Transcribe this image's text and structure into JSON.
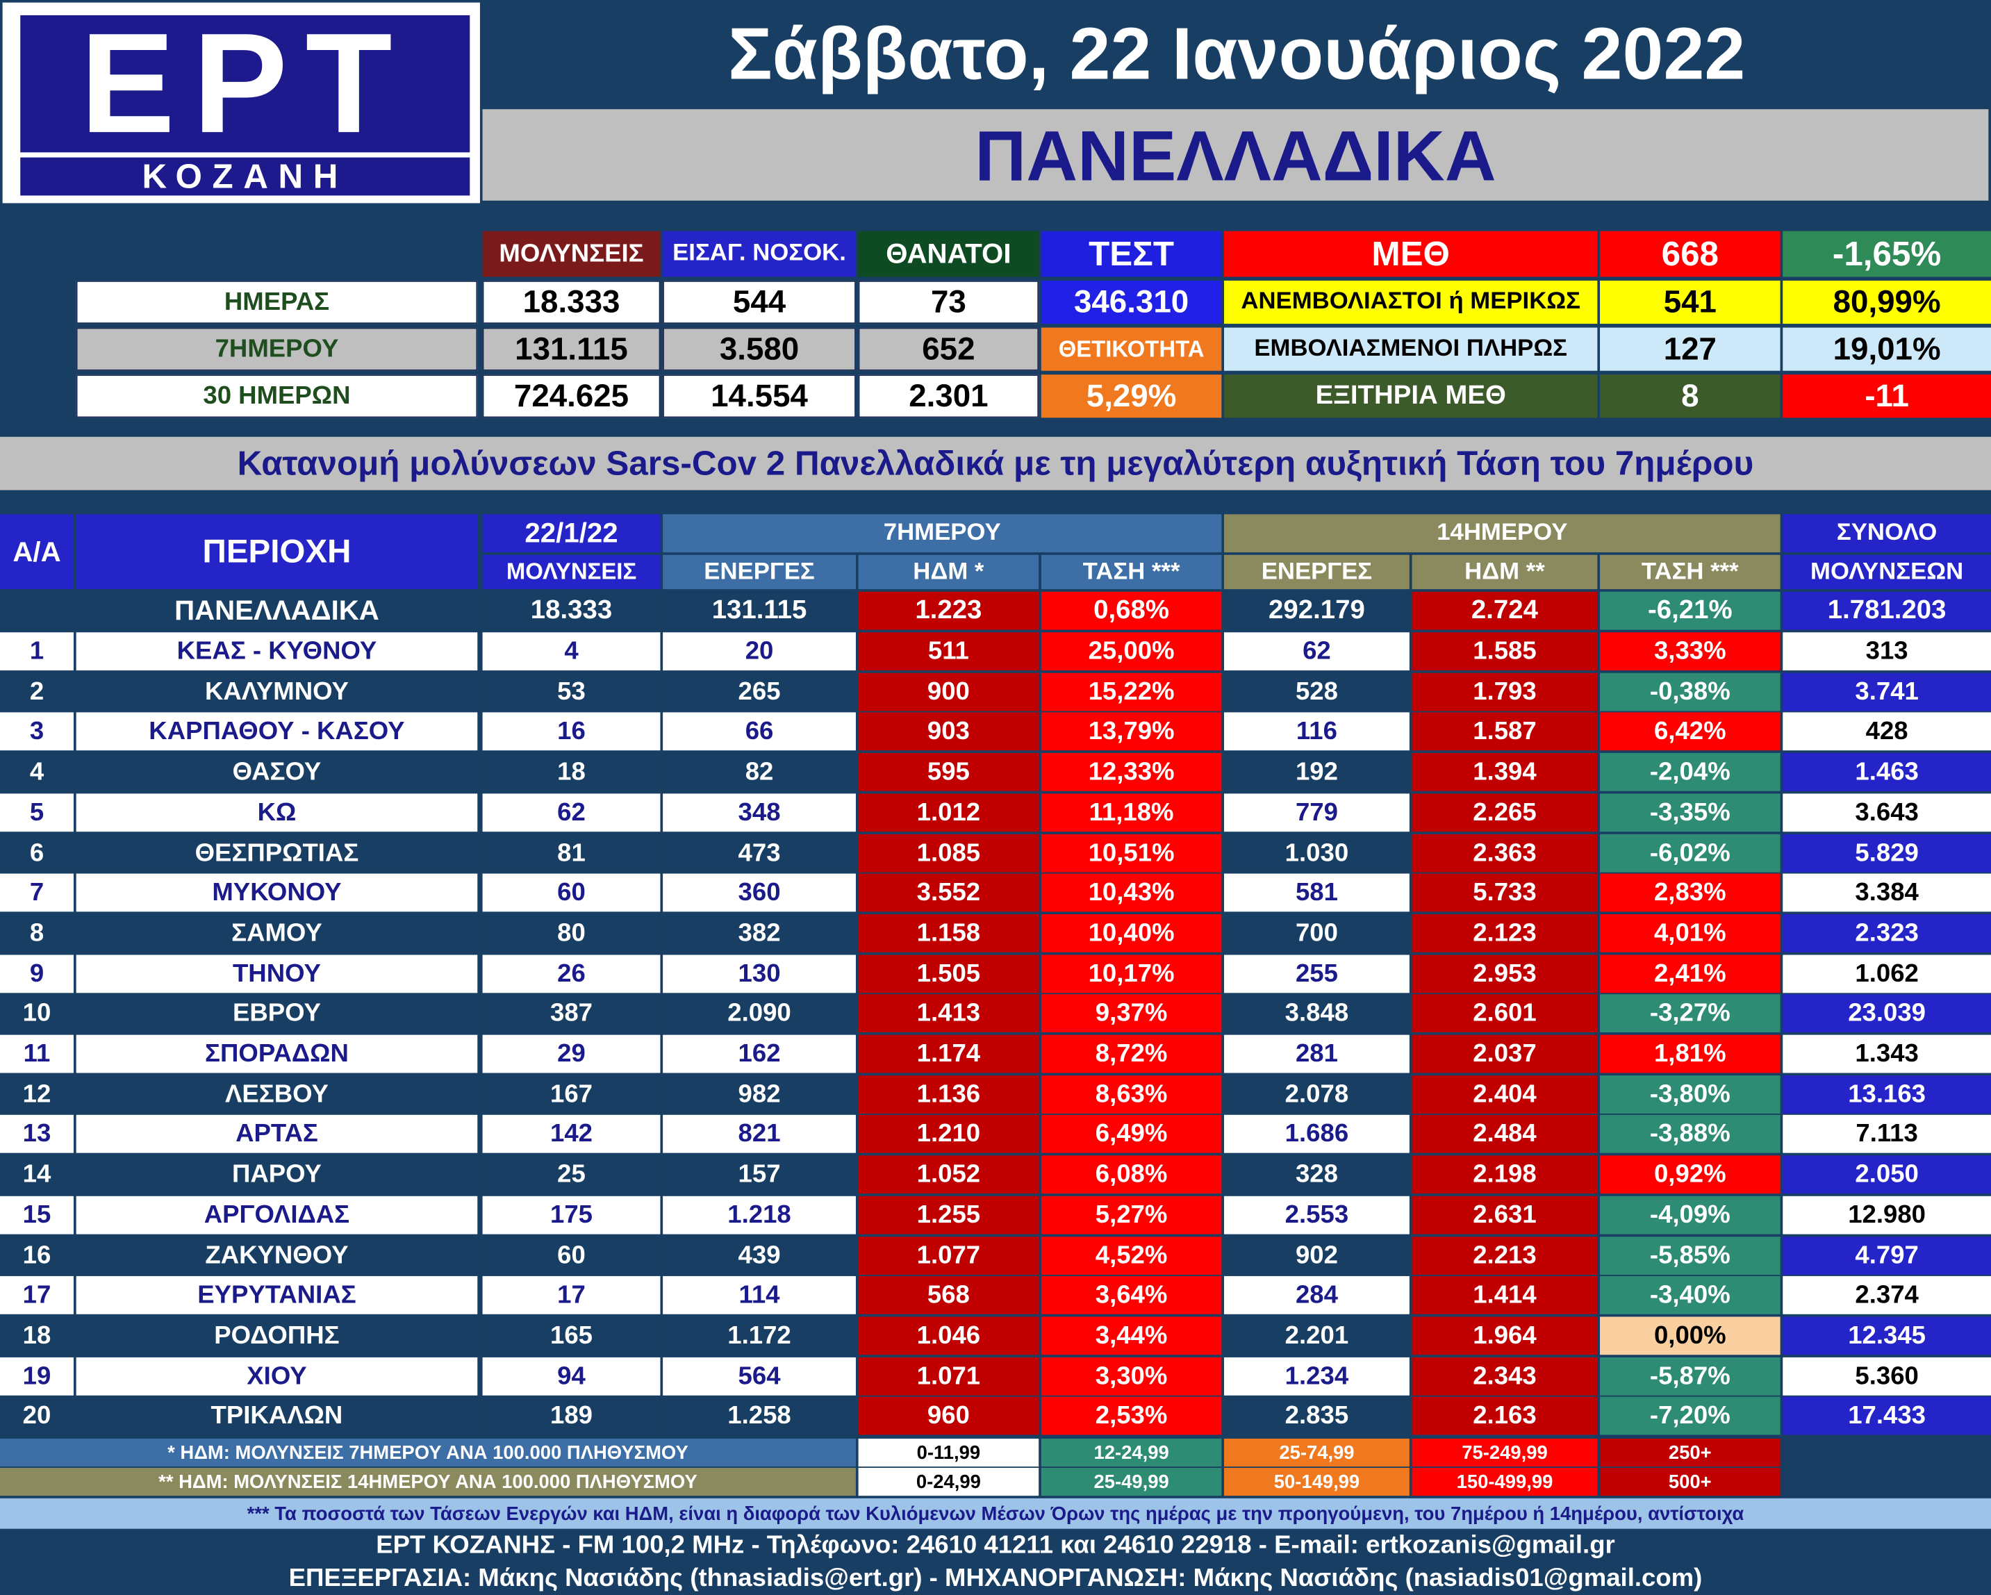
{
  "logo": {
    "brand": "ΕΡΤ",
    "city": "ΚΟΖΑΝΗ"
  },
  "date": "Σάββατο, 22 Ιανουάριος 2022",
  "region": "ΠΑΝΕΛΛΑΔΙΚΑ",
  "summary": {
    "headers": {
      "infections": "ΜΟΛΥΝΣΕΙΣ",
      "admissions": "ΕΙΣΑΓ. ΝΟΣΟΚ.",
      "deaths": "ΘΑΝΑΤΟΙ",
      "tests": "ΤΕΣΤ",
      "icu": "ΜΕΘ",
      "icu_total": "668",
      "icu_change": "-1,65%"
    },
    "rows": [
      {
        "label": "ΗΜΕΡΑΣ",
        "infections": "18.333",
        "admissions": "544",
        "deaths": "73"
      },
      {
        "label": "7ΗΜΕΡΟΥ",
        "infections": "131.115",
        "admissions": "3.580",
        "deaths": "652"
      },
      {
        "label": "30 ΗΜΕΡΩΝ",
        "infections": "724.625",
        "admissions": "14.554",
        "deaths": "2.301"
      }
    ],
    "tests_value": "346.310",
    "positivity_label": "ΘΕΤΙΚΟΤΗΤΑ",
    "positivity_value": "5,29%",
    "icu_rows": [
      {
        "label": "ΑΝΕΜΒΟΛΙΑΣΤΟΙ ή ΜΕΡΙΚΩΣ",
        "value": "541",
        "pct": "80,99%"
      },
      {
        "label": "ΕΜΒΟΛΙΑΣΜΕΝΟΙ ΠΛΗΡΩΣ",
        "value": "127",
        "pct": "19,01%"
      },
      {
        "label": "ΕΞΙΤΗΡΙΑ ΜΕΘ",
        "value": "8",
        "pct": "-11"
      }
    ]
  },
  "title": "Κατανομή μολύνσεων Sars-Cov 2 Πανελλαδικά με τη μεγαλύτερη αυξητική Τάση του 7ημέρου",
  "table": {
    "headers": {
      "aa": "Α/Α",
      "area": "ΠΕΡΙΟΧΗ",
      "date": "22/1/22",
      "infections": "ΜΟΛΥΝΣΕΙΣ",
      "group7": "7ΗΜΕΡΟΥ",
      "group14": "14ΗΜΕΡΟΥ",
      "active7": "ΕΝΕΡΓΕΣ",
      "hdm7": "ΗΔΜ *",
      "trend7": "ΤΑΣΗ ***",
      "active14": "ΕΝΕΡΓΕΣ",
      "hdm14": "ΗΔΜ **",
      "trend14": "ΤΑΣΗ ***",
      "total1": "ΣΥΝΟΛΟ",
      "total2": "ΜΟΛΥΝΣΕΩΝ"
    },
    "national": {
      "area": "ΠΑΝΕΛΛΑΔΙΚΑ",
      "infections": "18.333",
      "active7": "131.115",
      "hdm7": "1.223",
      "trend7": "0,68%",
      "active14": "292.179",
      "hdm14": "2.724",
      "trend14": "-6,21%",
      "total": "1.781.203"
    },
    "rows": [
      {
        "aa": "1",
        "area": "ΚΕΑΣ - ΚΥΘΝΟΥ",
        "infections": "4",
        "active7": "20",
        "hdm7": "511",
        "trend7": "25,00%",
        "active14": "62",
        "hdm14": "1.585",
        "trend14": "3,33%",
        "total": "313"
      },
      {
        "aa": "2",
        "area": "ΚΑΛΥΜΝΟΥ",
        "infections": "53",
        "active7": "265",
        "hdm7": "900",
        "trend7": "15,22%",
        "active14": "528",
        "hdm14": "1.793",
        "trend14": "-0,38%",
        "total": "3.741"
      },
      {
        "aa": "3",
        "area": "ΚΑΡΠΑΘΟΥ - ΚΑΣΟΥ",
        "infections": "16",
        "active7": "66",
        "hdm7": "903",
        "trend7": "13,79%",
        "active14": "116",
        "hdm14": "1.587",
        "trend14": "6,42%",
        "total": "428"
      },
      {
        "aa": "4",
        "area": "ΘΑΣΟΥ",
        "infections": "18",
        "active7": "82",
        "hdm7": "595",
        "trend7": "12,33%",
        "active14": "192",
        "hdm14": "1.394",
        "trend14": "-2,04%",
        "total": "1.463"
      },
      {
        "aa": "5",
        "area": "ΚΩ",
        "infections": "62",
        "active7": "348",
        "hdm7": "1.012",
        "trend7": "11,18%",
        "active14": "779",
        "hdm14": "2.265",
        "trend14": "-3,35%",
        "total": "3.643"
      },
      {
        "aa": "6",
        "area": "ΘΕΣΠΡΩΤΙΑΣ",
        "infections": "81",
        "active7": "473",
        "hdm7": "1.085",
        "trend7": "10,51%",
        "active14": "1.030",
        "hdm14": "2.363",
        "trend14": "-6,02%",
        "total": "5.829"
      },
      {
        "aa": "7",
        "area": "ΜΥΚΟΝΟΥ",
        "infections": "60",
        "active7": "360",
        "hdm7": "3.552",
        "trend7": "10,43%",
        "active14": "581",
        "hdm14": "5.733",
        "trend14": "2,83%",
        "total": "3.384"
      },
      {
        "aa": "8",
        "area": "ΣΑΜΟΥ",
        "infections": "80",
        "active7": "382",
        "hdm7": "1.158",
        "trend7": "10,40%",
        "active14": "700",
        "hdm14": "2.123",
        "trend14": "4,01%",
        "total": "2.323"
      },
      {
        "aa": "9",
        "area": "ΤΗΝΟΥ",
        "infections": "26",
        "active7": "130",
        "hdm7": "1.505",
        "trend7": "10,17%",
        "active14": "255",
        "hdm14": "2.953",
        "trend14": "2,41%",
        "total": "1.062"
      },
      {
        "aa": "10",
        "area": "ΕΒΡΟΥ",
        "infections": "387",
        "active7": "2.090",
        "hdm7": "1.413",
        "trend7": "9,37%",
        "active14": "3.848",
        "hdm14": "2.601",
        "trend14": "-3,27%",
        "total": "23.039"
      },
      {
        "aa": "11",
        "area": "ΣΠΟΡΑΔΩΝ",
        "infections": "29",
        "active7": "162",
        "hdm7": "1.174",
        "trend7": "8,72%",
        "active14": "281",
        "hdm14": "2.037",
        "trend14": "1,81%",
        "total": "1.343"
      },
      {
        "aa": "12",
        "area": "ΛΕΣΒΟΥ",
        "infections": "167",
        "active7": "982",
        "hdm7": "1.136",
        "trend7": "8,63%",
        "active14": "2.078",
        "hdm14": "2.404",
        "trend14": "-3,80%",
        "total": "13.163"
      },
      {
        "aa": "13",
        "area": "ΑΡΤΑΣ",
        "infections": "142",
        "active7": "821",
        "hdm7": "1.210",
        "trend7": "6,49%",
        "active14": "1.686",
        "hdm14": "2.484",
        "trend14": "-3,88%",
        "total": "7.113"
      },
      {
        "aa": "14",
        "area": "ΠΑΡΟΥ",
        "infections": "25",
        "active7": "157",
        "hdm7": "1.052",
        "trend7": "6,08%",
        "active14": "328",
        "hdm14": "2.198",
        "trend14": "0,92%",
        "total": "2.050"
      },
      {
        "aa": "15",
        "area": "ΑΡΓΟΛΙΔΑΣ",
        "infections": "175",
        "active7": "1.218",
        "hdm7": "1.255",
        "trend7": "5,27%",
        "active14": "2.553",
        "hdm14": "2.631",
        "trend14": "-4,09%",
        "total": "12.980"
      },
      {
        "aa": "16",
        "area": "ΖΑΚΥΝΘΟΥ",
        "infections": "60",
        "active7": "439",
        "hdm7": "1.077",
        "trend7": "4,52%",
        "active14": "902",
        "hdm14": "2.213",
        "trend14": "-5,85%",
        "total": "4.797"
      },
      {
        "aa": "17",
        "area": "ΕΥΡΥΤΑΝΙΑΣ",
        "infections": "17",
        "active7": "114",
        "hdm7": "568",
        "trend7": "3,64%",
        "active14": "284",
        "hdm14": "1.414",
        "trend14": "-3,40%",
        "total": "2.374"
      },
      {
        "aa": "18",
        "area": "ΡΟΔΟΠΗΣ",
        "infections": "165",
        "active7": "1.172",
        "hdm7": "1.046",
        "trend7": "3,44%",
        "active14": "2.201",
        "hdm14": "1.964",
        "trend14": "0,00%",
        "total": "12.345"
      },
      {
        "aa": "19",
        "area": "ΧΙΟΥ",
        "infections": "94",
        "active7": "564",
        "hdm7": "1.071",
        "trend7": "3,30%",
        "active14": "1.234",
        "hdm14": "2.343",
        "trend14": "-5,87%",
        "total": "5.360"
      },
      {
        "aa": "20",
        "area": "ΤΡΙΚΑΛΩΝ",
        "infections": "189",
        "active7": "1.258",
        "hdm7": "960",
        "trend7": "2,53%",
        "active14": "2.835",
        "hdm14": "2.163",
        "trend14": "-7,20%",
        "total": "17.433"
      }
    ]
  },
  "legend": {
    "row1": {
      "label": "* ΗΔΜ: ΜΟΛΥΝΣΕΙΣ 7ΗΜΕΡΟΥ ΑΝΑ 100.000 ΠΛΗΘΥΣΜΟΥ",
      "ranges": [
        "0-11,99",
        "12-24,99",
        "25-74,99",
        "75-249,99",
        "250+"
      ]
    },
    "row2": {
      "label": "** ΗΔΜ: ΜΟΛΥΝΣΕΙΣ 14ΗΜΕΡΟΥ ΑΝΑ 100.000 ΠΛΗΘΥΣΜΟΥ",
      "ranges": [
        "0-24,99",
        "25-49,99",
        "50-149,99",
        "150-499,99",
        "500+"
      ]
    }
  },
  "footnote": "*** Τα ποσοστά των Τάσεων Ενεργών και ΗΔΜ, είναι η διαφορά των Κυλιόμενων Μέσων Όρων της ημέρας με την προηγούμενη, του 7ημέρου ή 14ημέρου, αντίστοιχα",
  "contact": "ΕΡΤ ΚΟΖΑΝΗΣ - FM 100,2 MHz - Τηλέφωνο:  24610 41211 και 24610 22918 - E-mail: ertkozanis@gmail.gr",
  "credits": "ΕΠΕΞΕΡΓΑΣΙΑ: Μάκης Νασιάδης (thnasiadis@ert.gr) - ΜΗΧΑΝΟΡΓΑΝΩΣΗ: Μάκης Νασιάδης (nasiadis01@gmail.com)",
  "colors": {
    "navy": "#183f63",
    "grey": "#bfbfbf",
    "title_blue": "#1a1a8a",
    "hdm_red": "#c00000",
    "trend_red": "#ff0000",
    "trend_teal": "#2e8b74",
    "trend_zero": "#fbd0a0",
    "light_blue_row": "#d8e6f4",
    "header_blue": "#3d6fa6",
    "header_olive": "#8a8a5e",
    "header_purple": "#2424c8"
  }
}
